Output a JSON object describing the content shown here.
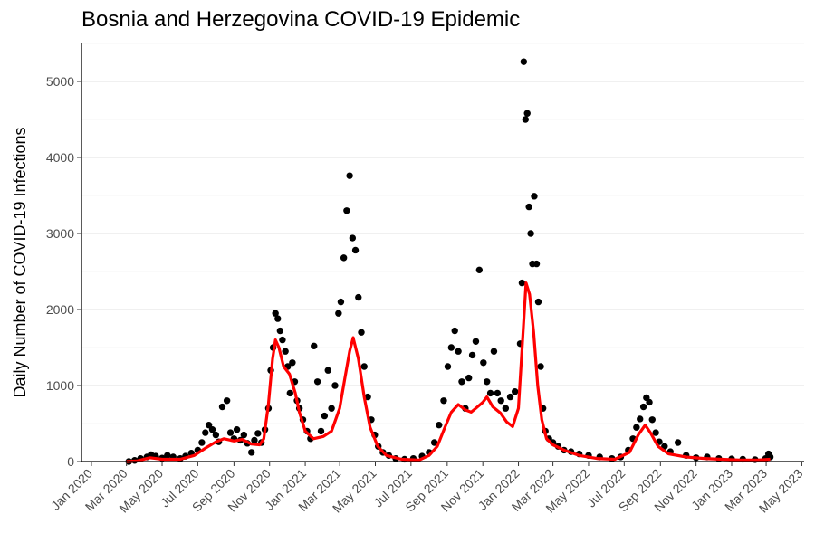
{
  "chart_data": {
    "type": "scatter",
    "title": "Bosnia and Herzegovina COVID-19 Epidemic",
    "xlabel": "",
    "ylabel": "Daily Number of COVID-19 Infections",
    "x_ticks": [
      "2020-01-01",
      "2020-03-01",
      "2020-05-01",
      "2020-07-01",
      "2020-09-01",
      "2020-11-01",
      "2021-01-01",
      "2021-03-01",
      "2021-05-01",
      "2021-07-01",
      "2021-09-01",
      "2021-11-01",
      "2022-01-01",
      "2022-03-01",
      "2022-05-01",
      "2022-07-01",
      "2022-09-01",
      "2022-11-01",
      "2023-01-01",
      "2023-03-01",
      "2023-05-01"
    ],
    "x_tick_labels": [
      "Jan 2020",
      "Mar 2020",
      "May 2020",
      "Jul 2020",
      "Sep 2020",
      "Nov 2020",
      "Jan 2021",
      "Mar 2021",
      "May 2021",
      "Jul 2021",
      "Sep 2021",
      "Nov 2021",
      "Jan 2022",
      "Mar 2022",
      "May 2022",
      "Jul 2022",
      "Sep 2022",
      "Nov 2022",
      "Jan 2023",
      "Mar 2023",
      "May 2023"
    ],
    "xlim": [
      "2019-12-15",
      "2023-05-05"
    ],
    "y_ticks": [
      0,
      1000,
      2000,
      3000,
      4000,
      5000
    ],
    "ylim": [
      0,
      5500
    ],
    "grid": "horizontal",
    "series": [
      {
        "kind": "points",
        "color": "#000000",
        "points": [
          [
            "2020-03-05",
            0
          ],
          [
            "2020-03-15",
            15
          ],
          [
            "2020-03-25",
            40
          ],
          [
            "2020-04-05",
            60
          ],
          [
            "2020-04-12",
            90
          ],
          [
            "2020-04-20",
            70
          ],
          [
            "2020-05-01",
            45
          ],
          [
            "2020-05-10",
            80
          ],
          [
            "2020-05-20",
            60
          ],
          [
            "2020-06-01",
            40
          ],
          [
            "2020-06-10",
            70
          ],
          [
            "2020-06-20",
            110
          ],
          [
            "2020-07-01",
            150
          ],
          [
            "2020-07-08",
            250
          ],
          [
            "2020-07-14",
            380
          ],
          [
            "2020-07-20",
            480
          ],
          [
            "2020-07-26",
            420
          ],
          [
            "2020-08-01",
            350
          ],
          [
            "2020-08-06",
            260
          ],
          [
            "2020-08-12",
            720
          ],
          [
            "2020-08-20",
            800
          ],
          [
            "2020-08-26",
            380
          ],
          [
            "2020-09-01",
            300
          ],
          [
            "2020-09-06",
            420
          ],
          [
            "2020-09-12",
            280
          ],
          [
            "2020-09-18",
            350
          ],
          [
            "2020-09-24",
            240
          ],
          [
            "2020-10-01",
            120
          ],
          [
            "2020-10-06",
            280
          ],
          [
            "2020-10-12",
            370
          ],
          [
            "2020-10-18",
            250
          ],
          [
            "2020-10-24",
            420
          ],
          [
            "2020-10-30",
            700
          ],
          [
            "2020-11-03",
            1200
          ],
          [
            "2020-11-07",
            1500
          ],
          [
            "2020-11-11",
            1950
          ],
          [
            "2020-11-15",
            1880
          ],
          [
            "2020-11-19",
            1720
          ],
          [
            "2020-11-23",
            1600
          ],
          [
            "2020-11-28",
            1450
          ],
          [
            "2020-12-02",
            1250
          ],
          [
            "2020-12-06",
            900
          ],
          [
            "2020-12-10",
            1300
          ],
          [
            "2020-12-14",
            1050
          ],
          [
            "2020-12-18",
            800
          ],
          [
            "2020-12-22",
            700
          ],
          [
            "2020-12-28",
            550
          ],
          [
            "2021-01-04",
            400
          ],
          [
            "2021-01-10",
            300
          ],
          [
            "2021-01-16",
            1520
          ],
          [
            "2021-01-22",
            1050
          ],
          [
            "2021-01-28",
            400
          ],
          [
            "2021-02-03",
            600
          ],
          [
            "2021-02-09",
            1200
          ],
          [
            "2021-02-15",
            700
          ],
          [
            "2021-02-21",
            1000
          ],
          [
            "2021-02-27",
            1950
          ],
          [
            "2021-03-03",
            2100
          ],
          [
            "2021-03-08",
            2680
          ],
          [
            "2021-03-13",
            3300
          ],
          [
            "2021-03-18",
            3760
          ],
          [
            "2021-03-23",
            2940
          ],
          [
            "2021-03-28",
            2780
          ],
          [
            "2021-04-02",
            2160
          ],
          [
            "2021-04-07",
            1700
          ],
          [
            "2021-04-12",
            1250
          ],
          [
            "2021-04-18",
            850
          ],
          [
            "2021-04-24",
            550
          ],
          [
            "2021-04-30",
            350
          ],
          [
            "2021-05-06",
            200
          ],
          [
            "2021-05-14",
            120
          ],
          [
            "2021-05-24",
            80
          ],
          [
            "2021-06-05",
            40
          ],
          [
            "2021-06-20",
            30
          ],
          [
            "2021-07-05",
            40
          ],
          [
            "2021-07-20",
            70
          ],
          [
            "2021-08-01",
            120
          ],
          [
            "2021-08-10",
            250
          ],
          [
            "2021-08-18",
            480
          ],
          [
            "2021-08-26",
            800
          ],
          [
            "2021-09-02",
            1250
          ],
          [
            "2021-09-08",
            1500
          ],
          [
            "2021-09-14",
            1720
          ],
          [
            "2021-09-20",
            1450
          ],
          [
            "2021-09-26",
            1050
          ],
          [
            "2021-10-02",
            700
          ],
          [
            "2021-10-08",
            1100
          ],
          [
            "2021-10-14",
            1400
          ],
          [
            "2021-10-20",
            1580
          ],
          [
            "2021-10-26",
            2520
          ],
          [
            "2021-11-02",
            1300
          ],
          [
            "2021-11-08",
            1050
          ],
          [
            "2021-11-14",
            900
          ],
          [
            "2021-11-20",
            1450
          ],
          [
            "2021-11-26",
            900
          ],
          [
            "2021-12-02",
            800
          ],
          [
            "2021-12-10",
            700
          ],
          [
            "2021-12-18",
            850
          ],
          [
            "2021-12-26",
            920
          ],
          [
            "2022-01-04",
            1550
          ],
          [
            "2022-01-07",
            2350
          ],
          [
            "2022-01-10",
            5260
          ],
          [
            "2022-01-13",
            4500
          ],
          [
            "2022-01-16",
            4580
          ],
          [
            "2022-01-19",
            3350
          ],
          [
            "2022-01-22",
            3000
          ],
          [
            "2022-01-25",
            2600
          ],
          [
            "2022-01-28",
            3490
          ],
          [
            "2022-02-01",
            2600
          ],
          [
            "2022-02-04",
            2100
          ],
          [
            "2022-02-08",
            1250
          ],
          [
            "2022-02-12",
            700
          ],
          [
            "2022-02-16",
            400
          ],
          [
            "2022-02-22",
            300
          ],
          [
            "2022-03-01",
            250
          ],
          [
            "2022-03-10",
            200
          ],
          [
            "2022-03-20",
            150
          ],
          [
            "2022-04-01",
            130
          ],
          [
            "2022-04-15",
            100
          ],
          [
            "2022-05-01",
            80
          ],
          [
            "2022-05-20",
            60
          ],
          [
            "2022-06-10",
            40
          ],
          [
            "2022-06-25",
            60
          ],
          [
            "2022-07-08",
            150
          ],
          [
            "2022-07-16",
            300
          ],
          [
            "2022-07-22",
            450
          ],
          [
            "2022-07-28",
            560
          ],
          [
            "2022-08-03",
            720
          ],
          [
            "2022-08-08",
            840
          ],
          [
            "2022-08-13",
            780
          ],
          [
            "2022-08-18",
            550
          ],
          [
            "2022-08-24",
            380
          ],
          [
            "2022-08-30",
            260
          ],
          [
            "2022-09-08",
            200
          ],
          [
            "2022-09-18",
            130
          ],
          [
            "2022-10-01",
            250
          ],
          [
            "2022-10-15",
            80
          ],
          [
            "2022-11-01",
            50
          ],
          [
            "2022-11-20",
            60
          ],
          [
            "2022-12-10",
            40
          ],
          [
            "2023-01-01",
            35
          ],
          [
            "2023-01-20",
            30
          ],
          [
            "2023-02-10",
            25
          ],
          [
            "2023-02-28",
            40
          ],
          [
            "2023-03-05",
            100
          ],
          [
            "2023-03-08",
            60
          ]
        ]
      },
      {
        "kind": "line",
        "color": "#ff0000",
        "points": [
          [
            "2020-03-01",
            0
          ],
          [
            "2020-03-20",
            10
          ],
          [
            "2020-04-10",
            50
          ],
          [
            "2020-05-01",
            30
          ],
          [
            "2020-06-01",
            30
          ],
          [
            "2020-06-25",
            80
          ],
          [
            "2020-07-15",
            180
          ],
          [
            "2020-08-01",
            260
          ],
          [
            "2020-08-15",
            300
          ],
          [
            "2020-09-01",
            270
          ],
          [
            "2020-09-15",
            290
          ],
          [
            "2020-10-01",
            230
          ],
          [
            "2020-10-15",
            220
          ],
          [
            "2020-10-22",
            300
          ],
          [
            "2020-10-30",
            750
          ],
          [
            "2020-11-06",
            1350
          ],
          [
            "2020-11-11",
            1600
          ],
          [
            "2020-11-17",
            1500
          ],
          [
            "2020-11-25",
            1250
          ],
          [
            "2020-12-05",
            1150
          ],
          [
            "2020-12-15",
            900
          ],
          [
            "2020-12-22",
            650
          ],
          [
            "2021-01-01",
            400
          ],
          [
            "2021-01-15",
            300
          ],
          [
            "2021-02-01",
            330
          ],
          [
            "2021-02-15",
            400
          ],
          [
            "2021-03-01",
            700
          ],
          [
            "2021-03-10",
            1100
          ],
          [
            "2021-03-18",
            1450
          ],
          [
            "2021-03-24",
            1630
          ],
          [
            "2021-04-02",
            1350
          ],
          [
            "2021-04-12",
            850
          ],
          [
            "2021-04-22",
            450
          ],
          [
            "2021-05-05",
            200
          ],
          [
            "2021-05-20",
            80
          ],
          [
            "2021-06-15",
            30
          ],
          [
            "2021-07-15",
            20
          ],
          [
            "2021-08-01",
            80
          ],
          [
            "2021-08-15",
            200
          ],
          [
            "2021-08-28",
            450
          ],
          [
            "2021-09-08",
            650
          ],
          [
            "2021-09-20",
            750
          ],
          [
            "2021-10-02",
            680
          ],
          [
            "2021-10-12",
            650
          ],
          [
            "2021-10-20",
            700
          ],
          [
            "2021-11-01",
            780
          ],
          [
            "2021-11-08",
            850
          ],
          [
            "2021-11-18",
            720
          ],
          [
            "2021-12-01",
            640
          ],
          [
            "2021-12-12",
            520
          ],
          [
            "2021-12-22",
            460
          ],
          [
            "2022-01-01",
            700
          ],
          [
            "2022-01-08",
            1600
          ],
          [
            "2022-01-14",
            2350
          ],
          [
            "2022-01-20",
            2200
          ],
          [
            "2022-01-27",
            1700
          ],
          [
            "2022-02-03",
            1000
          ],
          [
            "2022-02-10",
            550
          ],
          [
            "2022-02-18",
            300
          ],
          [
            "2022-03-01",
            220
          ],
          [
            "2022-03-20",
            150
          ],
          [
            "2022-04-15",
            80
          ],
          [
            "2022-05-15",
            40
          ],
          [
            "2022-06-15",
            30
          ],
          [
            "2022-07-10",
            120
          ],
          [
            "2022-07-25",
            350
          ],
          [
            "2022-08-06",
            480
          ],
          [
            "2022-08-15",
            380
          ],
          [
            "2022-08-28",
            200
          ],
          [
            "2022-09-15",
            100
          ],
          [
            "2022-10-15",
            60
          ],
          [
            "2022-11-15",
            40
          ],
          [
            "2022-12-15",
            30
          ],
          [
            "2023-01-15",
            20
          ],
          [
            "2023-02-15",
            20
          ],
          [
            "2023-03-08",
            30
          ]
        ]
      }
    ]
  }
}
